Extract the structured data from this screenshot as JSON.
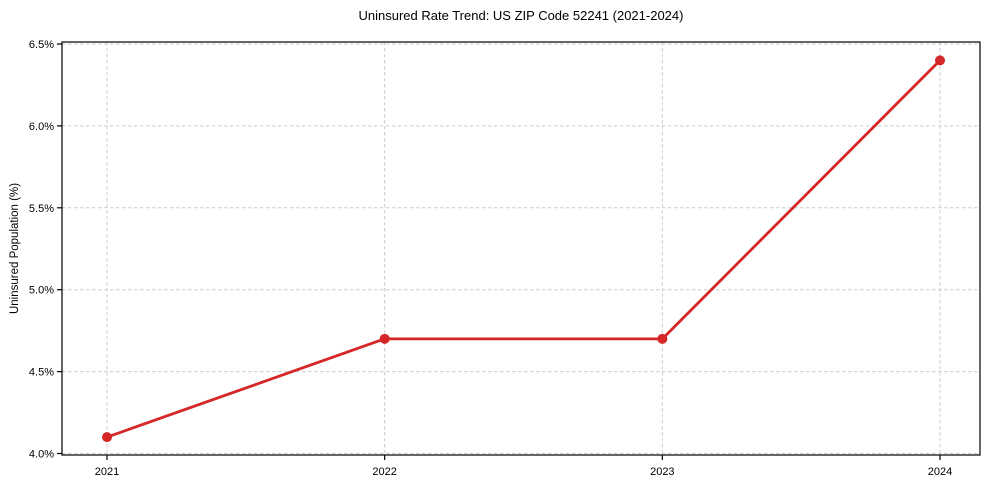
{
  "chart_data": {
    "type": "line",
    "title": "Uninsured Rate Trend: US ZIP Code 52241 (2021-2024)",
    "xlabel": "",
    "ylabel": "Uninsured Population (%)",
    "categories": [
      "2021",
      "2022",
      "2023",
      "2024"
    ],
    "values": [
      4.1,
      4.7,
      4.7,
      6.4
    ],
    "ylim": [
      4.0,
      6.5
    ],
    "yticks": [
      4.0,
      4.5,
      5.0,
      5.5,
      6.0,
      6.5
    ],
    "ytick_labels": [
      "4.0%",
      "4.5%",
      "5.0%",
      "5.5%",
      "6.0%",
      "6.5%"
    ],
    "grid": true,
    "grid_style": "dashed",
    "legend": "none",
    "colors": {
      "line": "#d62728",
      "marker": "#d62728",
      "grid": "#cccccc",
      "axis": "#000000",
      "text": "#000000",
      "background": "#ffffff"
    }
  }
}
